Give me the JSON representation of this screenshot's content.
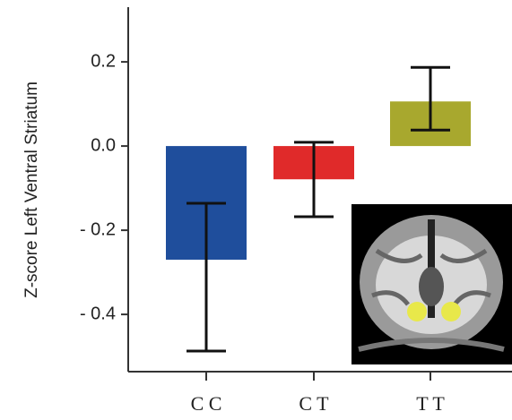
{
  "chart_data": {
    "type": "bar",
    "y_label": "Z-score Left Ventral Striatum",
    "categories": [
      "C C",
      "C T",
      "T T"
    ],
    "values": [
      -0.27,
      -0.079,
      0.106
    ],
    "error_bars": [
      [
        -0.487,
        -0.136
      ],
      [
        -0.168,
        0.009
      ],
      [
        0.038,
        0.187
      ]
    ],
    "colors": [
      "#1f4e9c",
      "#e02a2a",
      "#a8a82e"
    ],
    "ylim": [
      -0.536,
      0.33
    ],
    "yticks": [
      {
        "value": 0.2,
        "label": "0.2"
      },
      {
        "value": 0.0,
        "label": "0.0"
      },
      {
        "value": -0.2,
        "label": "- 0.2"
      },
      {
        "value": -0.4,
        "label": "- 0.4"
      }
    ]
  }
}
